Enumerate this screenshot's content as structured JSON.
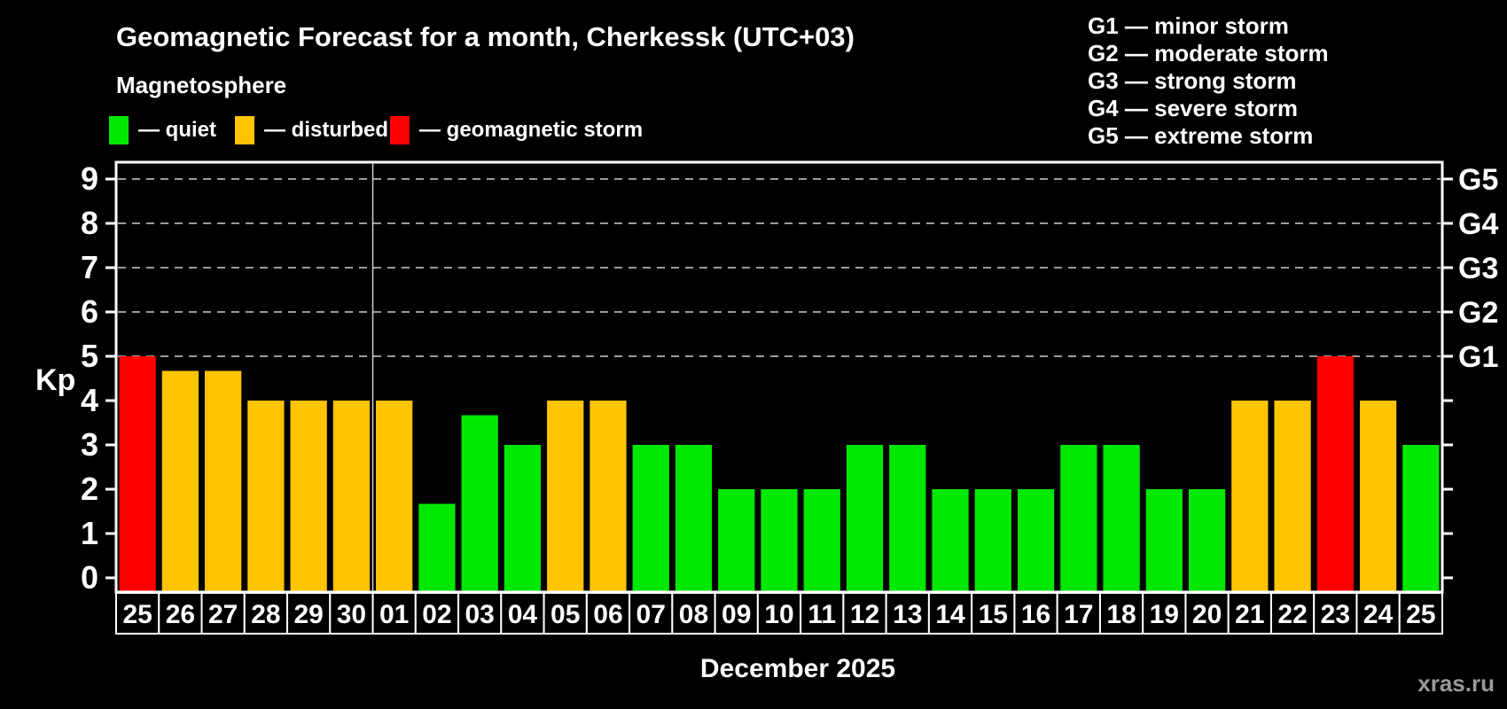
{
  "title": "Geomagnetic Forecast for a month, Cherkessk (UTC+03)",
  "subtitle": "Magnetosphere",
  "status_legend": {
    "items": [
      {
        "key": "quiet",
        "label": "— quiet"
      },
      {
        "key": "disturbed",
        "label": "— disturbed"
      },
      {
        "key": "storm",
        "label": "— geomagnetic storm"
      }
    ]
  },
  "g_legend": {
    "items": [
      "G1 — minor storm",
      "G2 — moderate storm",
      "G3 — strong storm",
      "G4 — severe storm",
      "G5 — extreme storm"
    ]
  },
  "colors": {
    "quiet": "#00e800",
    "disturbed": "#ffc400",
    "storm": "#ff0000",
    "axis": "#ffffff",
    "grid": "#9b9b9b",
    "month_separator": "#cfcfcf",
    "watermark": "#9a9a9a"
  },
  "watermark": "xras.ru",
  "chart_data": {
    "type": "bar",
    "title": "Geomagnetic Forecast for a month, Cherkessk (UTC+03)",
    "xlabel": "December 2025",
    "ylabel": "Kp",
    "ylim": [
      0,
      9
    ],
    "grid": "dashed horizontal lines at Kp 5-9 only",
    "legend_position": "top",
    "y_ticks": [
      0,
      1,
      2,
      3,
      4,
      5,
      6,
      7,
      8,
      9
    ],
    "right_axis_labels": [
      {
        "kp": 5,
        "label": "G1"
      },
      {
        "kp": 6,
        "label": "G2"
      },
      {
        "kp": 7,
        "label": "G3"
      },
      {
        "kp": 8,
        "label": "G4"
      },
      {
        "kp": 9,
        "label": "G5"
      }
    ],
    "grid_levels": [
      5,
      6,
      7,
      8,
      9
    ],
    "month_boundary_index": 6,
    "categories": [
      "25",
      "26",
      "27",
      "28",
      "29",
      "30",
      "01",
      "02",
      "03",
      "04",
      "05",
      "06",
      "07",
      "08",
      "09",
      "10",
      "11",
      "12",
      "13",
      "14",
      "15",
      "16",
      "17",
      "18",
      "19",
      "20",
      "21",
      "22",
      "23",
      "24",
      "25"
    ],
    "values": [
      5,
      4.67,
      4.67,
      4,
      4,
      4,
      4,
      1.67,
      3.67,
      3,
      4,
      4,
      3,
      3,
      2,
      2,
      2,
      3,
      3,
      2,
      2,
      2,
      3,
      3,
      2,
      2,
      4,
      4,
      5,
      4,
      3
    ],
    "states": [
      "storm",
      "disturbed",
      "disturbed",
      "disturbed",
      "disturbed",
      "disturbed",
      "disturbed",
      "quiet",
      "quiet",
      "quiet",
      "disturbed",
      "disturbed",
      "quiet",
      "quiet",
      "quiet",
      "quiet",
      "quiet",
      "quiet",
      "quiet",
      "quiet",
      "quiet",
      "quiet",
      "quiet",
      "quiet",
      "quiet",
      "quiet",
      "disturbed",
      "disturbed",
      "storm",
      "disturbed",
      "quiet"
    ]
  }
}
